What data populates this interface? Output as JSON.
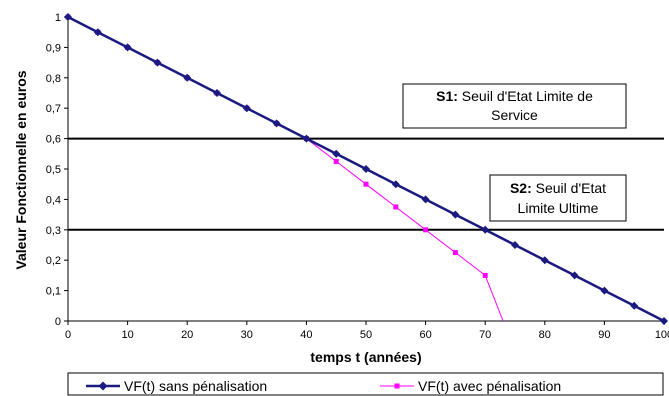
{
  "chart_data": {
    "type": "line",
    "xlabel": "temps t (années)",
    "ylabel": "Valeur Fonctionnelle en euros",
    "xlim": [
      0,
      100
    ],
    "ylim": [
      0,
      1
    ],
    "x_ticks": [
      "0",
      "10",
      "20",
      "30",
      "40",
      "50",
      "60",
      "70",
      "80",
      "90",
      "100"
    ],
    "y_ticks": [
      "0",
      "0,1",
      "0,2",
      "0,3",
      "0,4",
      "0,5",
      "0,6",
      "0,7",
      "0,8",
      "0,9",
      "1"
    ],
    "grid": false,
    "legend_position": "bottom",
    "series": [
      {
        "name": "VF(t) sans pénalisation",
        "color": "#1a1a80",
        "marker": "diamond",
        "x": [
          0,
          5,
          10,
          15,
          20,
          25,
          30,
          35,
          40,
          45,
          50,
          55,
          60,
          65,
          70,
          75,
          80,
          85,
          90,
          95,
          100
        ],
        "values": [
          1,
          0.95,
          0.9,
          0.85,
          0.8,
          0.75,
          0.7,
          0.65,
          0.6,
          0.55,
          0.5,
          0.45,
          0.4,
          0.35,
          0.3,
          0.25,
          0.2,
          0.15,
          0.1,
          0.05,
          0
        ]
      },
      {
        "name": "VF(t) avec pénalisation",
        "color": "#ff00ff",
        "marker": "square",
        "x": [
          0,
          5,
          10,
          15,
          20,
          25,
          30,
          35,
          40,
          45,
          50,
          55,
          60,
          65,
          70,
          73
        ],
        "values": [
          1,
          0.95,
          0.9,
          0.85,
          0.8,
          0.75,
          0.7,
          0.65,
          0.6,
          0.525,
          0.45,
          0.375,
          0.3,
          0.225,
          0.15,
          0
        ],
        "marked_points": 15
      }
    ],
    "thresholds": [
      {
        "value": 0.6,
        "label_bold": "S1:",
        "label_line1": " Seuil d'Etat Limite de",
        "label_line2": "Service"
      },
      {
        "value": 0.3,
        "label_bold": "S2:",
        "label_line1": " Seuil d'Etat",
        "label_line2": "Limite Ultime"
      }
    ]
  }
}
